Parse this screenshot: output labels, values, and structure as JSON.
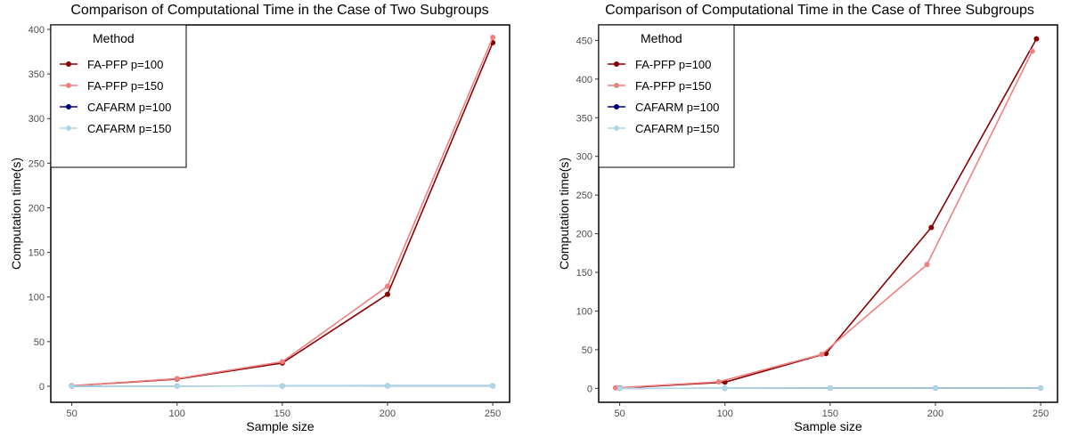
{
  "chart_data": [
    {
      "type": "line",
      "title": "Comparison of Computational Time in the Case of Two Subgroups",
      "xlabel": "Sample size",
      "ylabel": "Computation time(s)",
      "x": [
        50,
        100,
        150,
        200,
        250
      ],
      "xticks": [
        50,
        100,
        150,
        200,
        250
      ],
      "yticks": [
        0,
        50,
        100,
        150,
        200,
        250,
        300,
        350,
        400
      ],
      "xlim": [
        40,
        258
      ],
      "ylim": [
        -18,
        405
      ],
      "grid": false,
      "legend_title": "Method",
      "legend_position": "top-left",
      "series": [
        {
          "name": "FA-PFP p=100",
          "color": "#8b0000",
          "values": [
            0.5,
            8,
            26,
            103,
            385
          ]
        },
        {
          "name": "FA-PFP p=150",
          "color": "#f08080",
          "values": [
            0.6,
            8.5,
            27.5,
            112,
            391
          ]
        },
        {
          "name": "CAFARM p=100",
          "color": "#000080",
          "values": [
            0.1,
            0.2,
            0.3,
            0.4,
            0.5
          ]
        },
        {
          "name": "CAFARM p=150",
          "color": "#add8e6",
          "values": [
            0.1,
            0.2,
            0.3,
            0.4,
            0.5
          ]
        }
      ]
    },
    {
      "type": "line",
      "title": "Comparison of Computational Time in the Case of Three Subgroups",
      "xlabel": "Sample size",
      "ylabel": "Computation time(s)",
      "x": [
        50,
        100,
        150,
        200,
        250
      ],
      "xticks": [
        50,
        100,
        150,
        200,
        250
      ],
      "yticks": [
        0,
        50,
        100,
        150,
        200,
        250,
        300,
        350,
        400,
        450
      ],
      "xlim": [
        40,
        258
      ],
      "ylim": [
        -18,
        470
      ],
      "grid": false,
      "legend_title": "Method",
      "legend_position": "top-left",
      "series": [
        {
          "name": "FA-PFP p=100",
          "color": "#8b0000",
          "x": [
            50,
            100,
            148,
            198,
            248
          ],
          "values": [
            0.5,
            8,
            45,
            208,
            452
          ]
        },
        {
          "name": "FA-PFP p=150",
          "color": "#f08080",
          "x": [
            48,
            97,
            146,
            196,
            246
          ],
          "values": [
            0.7,
            8.5,
            44,
            160,
            436
          ]
        },
        {
          "name": "CAFARM p=100",
          "color": "#000080",
          "values": [
            0.1,
            0.2,
            0.3,
            0.4,
            0.5
          ]
        },
        {
          "name": "CAFARM p=150",
          "color": "#add8e6",
          "values": [
            0.1,
            0.2,
            0.3,
            0.4,
            0.5
          ]
        }
      ]
    }
  ]
}
